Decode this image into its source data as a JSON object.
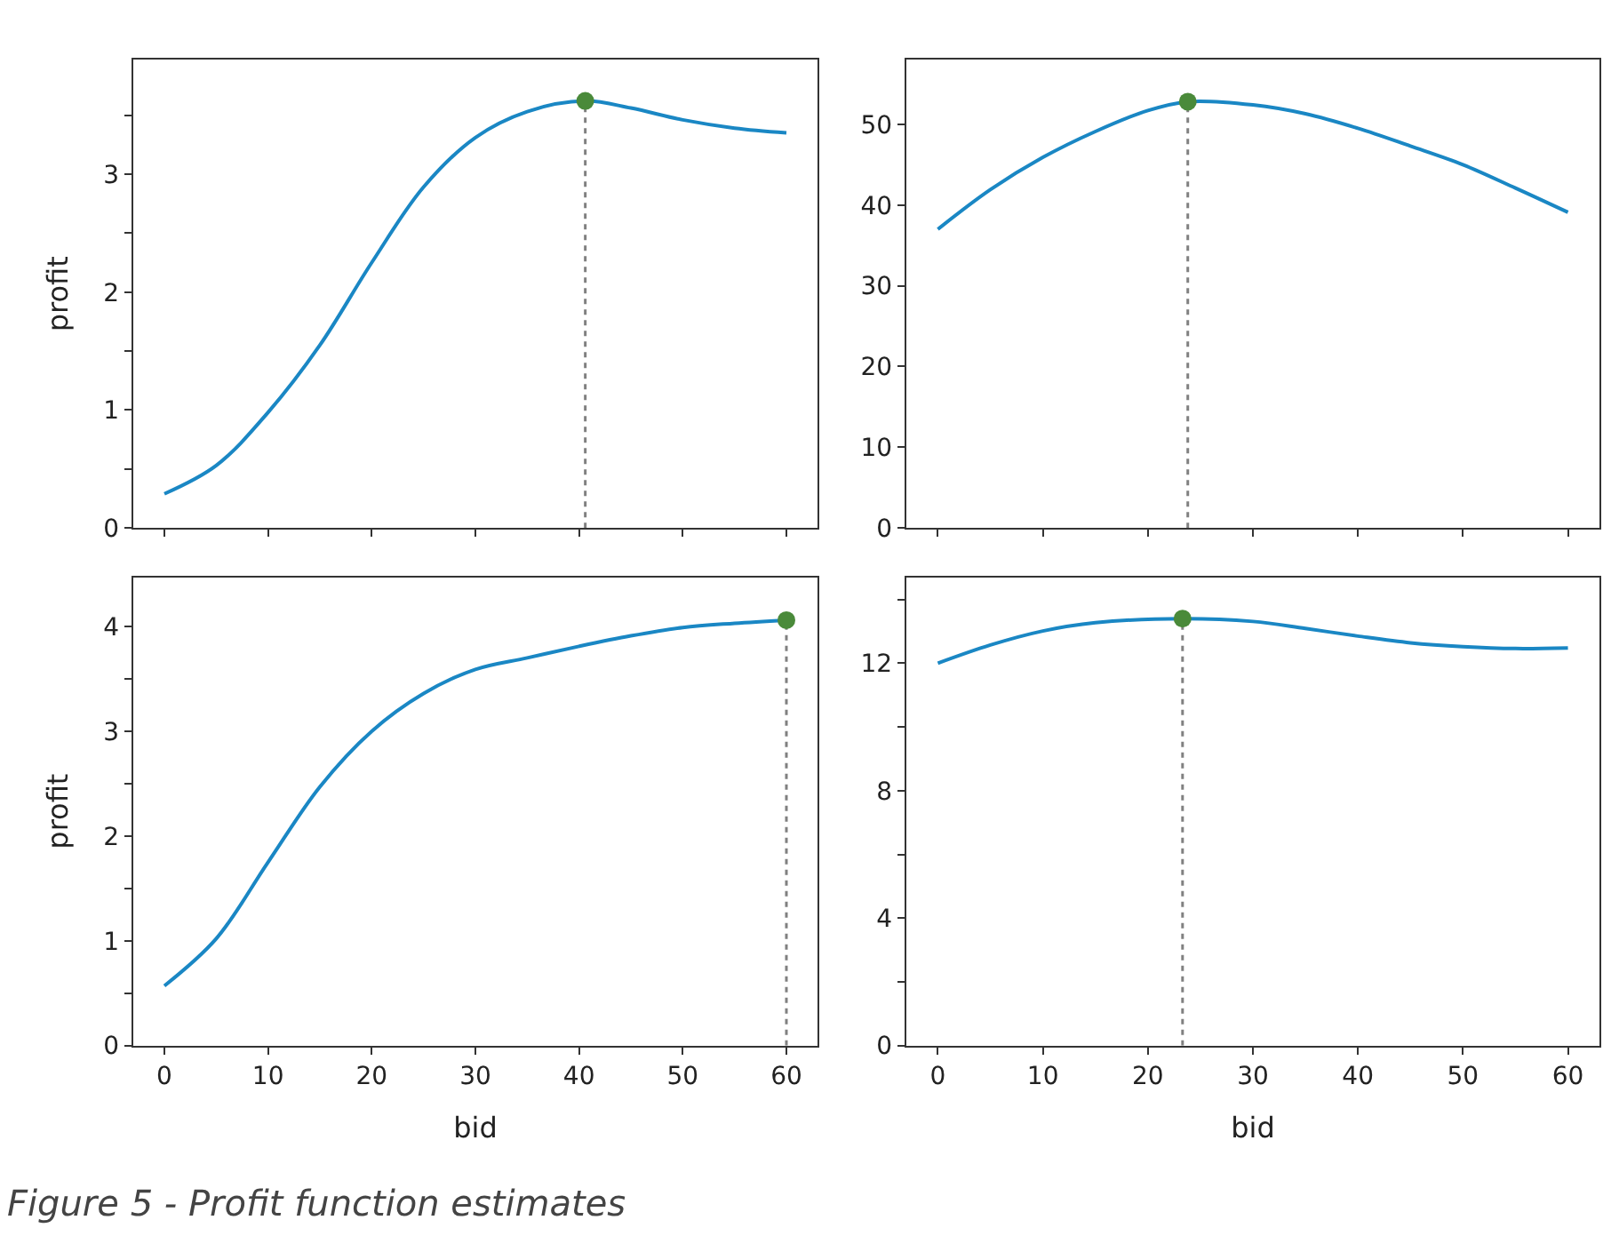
{
  "chart_data": [
    {
      "type": "line",
      "ylabel": "profit",
      "tick_labels": "y",
      "xlim": [
        -3,
        63
      ],
      "xticks": [
        {
          "value": 0,
          "label": null
        },
        {
          "value": 10,
          "label": null
        },
        {
          "value": 20,
          "label": null
        },
        {
          "value": 30,
          "label": null
        },
        {
          "value": 40,
          "label": null
        },
        {
          "value": 50,
          "label": null
        },
        {
          "value": 60,
          "label": null
        }
      ],
      "ylim": [
        0,
        3.97
      ],
      "yticks": [
        0,
        {
          "value": 0.5,
          "label": null
        },
        1,
        {
          "value": 1.5,
          "label": null
        },
        2,
        {
          "value": 2.5,
          "label": null
        },
        3,
        {
          "value": 3.5,
          "label": null
        }
      ],
      "series": [
        {
          "color": "#1a87c4",
          "x": [
            0,
            5,
            10,
            15,
            20,
            25,
            30,
            35,
            40.6,
            45,
            50,
            55,
            60
          ],
          "values": [
            0.29,
            0.53,
            0.98,
            1.55,
            2.25,
            2.89,
            3.31,
            3.53,
            3.62,
            3.56,
            3.46,
            3.39,
            3.35
          ]
        },
        {
          "type": "scatter",
          "marker": "circle",
          "color": "#4a8a3a",
          "x": [
            40.6
          ],
          "values": [
            3.62
          ]
        }
      ],
      "ref_lines": [
        {
          "axis": "x",
          "value": 40.6,
          "color": "#808080",
          "line_style": "dotted"
        }
      ]
    },
    {
      "type": "line",
      "tick_labels": "y",
      "xlim": [
        -3,
        63
      ],
      "xticks": [
        {
          "value": 0,
          "label": null
        },
        {
          "value": 10,
          "label": null
        },
        {
          "value": 20,
          "label": null
        },
        {
          "value": 30,
          "label": null
        },
        {
          "value": 40,
          "label": null
        },
        {
          "value": 50,
          "label": null
        },
        {
          "value": 60,
          "label": null
        }
      ],
      "ylim": [
        0,
        58
      ],
      "yticks": [
        0,
        10,
        20,
        30,
        40,
        50
      ],
      "series": [
        {
          "color": "#1a87c4",
          "x": [
            0,
            5,
            10,
            15,
            20,
            23.8,
            30,
            35,
            40,
            45,
            50,
            55,
            60
          ],
          "values": [
            37.0,
            41.9,
            45.9,
            49.1,
            51.7,
            52.8,
            52.4,
            51.3,
            49.5,
            47.3,
            45.0,
            42.1,
            39.1
          ]
        },
        {
          "type": "scatter",
          "marker": "circle",
          "color": "#4a8a3a",
          "x": [
            23.8
          ],
          "values": [
            52.8
          ]
        }
      ],
      "ref_lines": [
        {
          "axis": "x",
          "value": 23.8,
          "color": "#808080",
          "line_style": "dotted"
        }
      ]
    },
    {
      "type": "line",
      "xlabel": "bid",
      "ylabel": "profit",
      "xlim": [
        -3,
        63
      ],
      "xticks": [
        0,
        10,
        20,
        30,
        40,
        50,
        60
      ],
      "ylim": [
        0,
        4.47
      ],
      "yticks": [
        0,
        {
          "value": 0.5,
          "label": null
        },
        1,
        {
          "value": 1.5,
          "label": null
        },
        2,
        {
          "value": 2.5,
          "label": null
        },
        3,
        {
          "value": 3.5,
          "label": null
        },
        4
      ],
      "series": [
        {
          "color": "#1a87c4",
          "x": [
            0,
            5,
            10,
            15,
            20,
            25,
            30,
            35,
            40,
            45,
            50,
            55,
            60
          ],
          "values": [
            0.57,
            1.02,
            1.75,
            2.47,
            3.0,
            3.36,
            3.59,
            3.7,
            3.81,
            3.91,
            3.99,
            4.03,
            4.06
          ]
        },
        {
          "type": "scatter",
          "marker": "circle",
          "color": "#4a8a3a",
          "x": [
            60
          ],
          "values": [
            4.06
          ]
        }
      ],
      "ref_lines": [
        {
          "axis": "x",
          "value": 60,
          "color": "#808080",
          "line_style": "dotted"
        }
      ],
      "annotations": [
        "Figure 5 - Profit function estimates"
      ]
    },
    {
      "type": "line",
      "xlabel": "bid",
      "xlim": [
        -3,
        63
      ],
      "xticks": [
        0,
        10,
        20,
        30,
        40,
        50,
        60
      ],
      "ylim": [
        0,
        14.7
      ],
      "yticks": [
        0,
        {
          "value": 2,
          "label": null
        },
        4,
        {
          "value": 6,
          "label": null
        },
        8,
        {
          "value": 10,
          "label": null
        },
        12,
        {
          "value": 14,
          "label": null
        }
      ],
      "series": [
        {
          "color": "#1a87c4",
          "x": [
            0,
            5,
            10,
            15,
            23.3,
            30,
            35,
            40,
            45,
            50,
            55,
            60
          ],
          "values": [
            12.0,
            12.57,
            13.01,
            13.27,
            13.4,
            13.31,
            13.09,
            12.85,
            12.64,
            12.52,
            12.46,
            12.48
          ]
        },
        {
          "type": "scatter",
          "marker": "circle",
          "color": "#4a8a3a",
          "x": [
            23.3
          ],
          "values": [
            13.4
          ]
        }
      ],
      "ref_lines": [
        {
          "axis": "x",
          "value": 23.3,
          "color": "#808080",
          "line_style": "dotted"
        }
      ]
    }
  ]
}
